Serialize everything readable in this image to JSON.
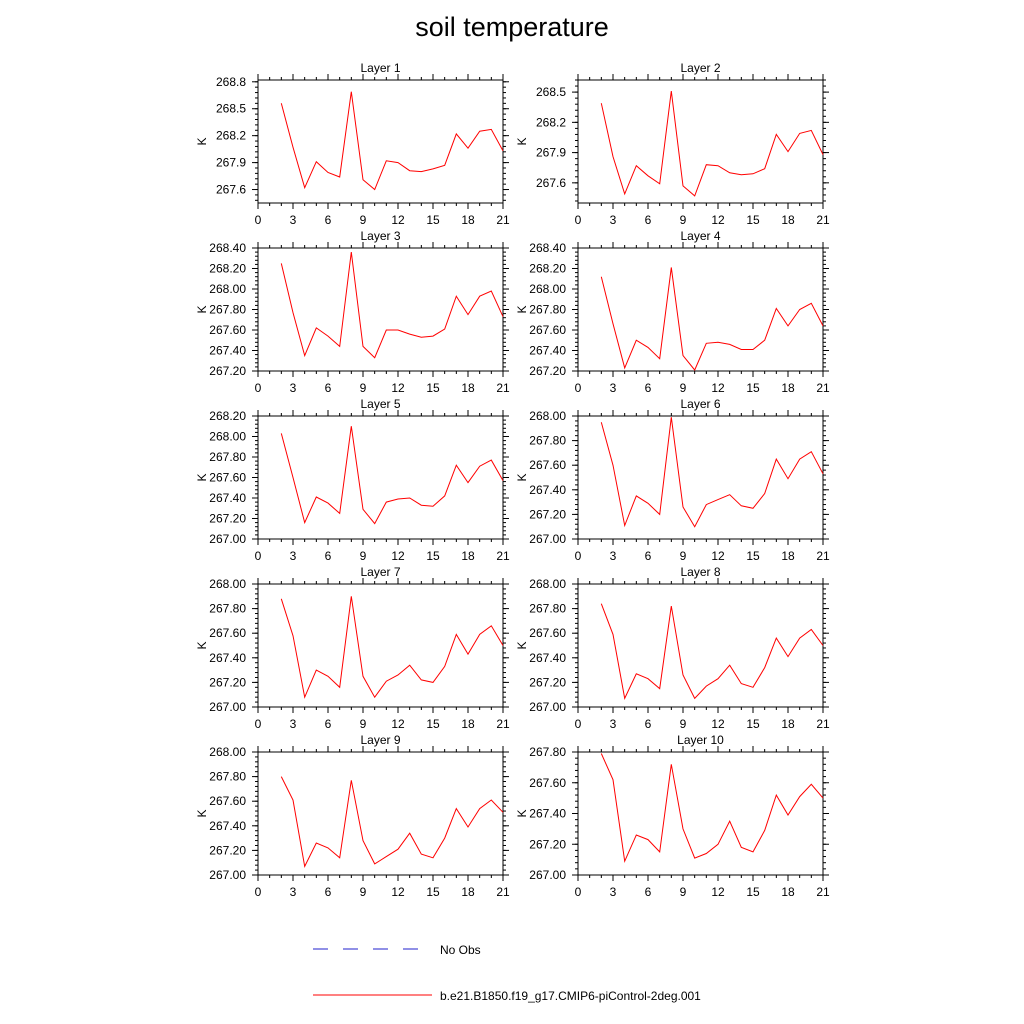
{
  "title": "soil temperature",
  "legend": [
    {
      "label": "No Obs",
      "color": "#2222cc",
      "style": "dashed"
    },
    {
      "label": "b.e21.B1850.f19_g17.CMIP6-piControl-2deg.001",
      "color": "#ff0000",
      "style": "solid"
    }
  ],
  "chart_data": [
    {
      "type": "line",
      "title": "Layer 1",
      "ylabel": "K",
      "xlim": [
        0,
        21
      ],
      "xticks": [
        0,
        3,
        6,
        9,
        12,
        15,
        18,
        21
      ],
      "ylim": [
        267.45,
        268.82
      ],
      "yticks": [
        267.6,
        267.9,
        268.2,
        268.5,
        268.8
      ],
      "ytick_labels": [
        "267.6",
        "267.9",
        "268.2",
        "268.5",
        "268.8"
      ],
      "x": [
        2,
        3,
        4,
        5,
        6,
        7,
        8,
        9,
        10,
        11,
        12,
        13,
        14,
        15,
        16,
        17,
        18,
        19,
        20,
        21
      ],
      "series": [
        {
          "values": [
            268.56,
            268.07,
            267.62,
            267.91,
            267.79,
            267.74,
            268.69,
            267.71,
            267.6,
            267.92,
            267.9,
            267.81,
            267.8,
            267.83,
            267.87,
            268.22,
            268.06,
            268.25,
            268.27,
            268.03
          ]
        }
      ]
    },
    {
      "type": "line",
      "title": "Layer 2",
      "ylabel": "K",
      "xlim": [
        0,
        21
      ],
      "xticks": [
        0,
        3,
        6,
        9,
        12,
        15,
        18,
        21
      ],
      "ylim": [
        267.4,
        268.62
      ],
      "yticks": [
        267.6,
        267.9,
        268.2,
        268.5
      ],
      "ytick_labels": [
        "267.6",
        "267.9",
        "268.2",
        "268.5"
      ],
      "x": [
        2,
        3,
        4,
        5,
        6,
        7,
        8,
        9,
        10,
        11,
        12,
        13,
        14,
        15,
        16,
        17,
        18,
        19,
        20,
        21
      ],
      "series": [
        {
          "values": [
            268.39,
            267.86,
            267.49,
            267.77,
            267.67,
            267.59,
            268.51,
            267.57,
            267.47,
            267.78,
            267.77,
            267.7,
            267.68,
            267.69,
            267.74,
            268.08,
            267.91,
            268.09,
            268.12,
            267.88
          ]
        }
      ]
    },
    {
      "type": "line",
      "title": "Layer 3",
      "ylabel": "K",
      "xlim": [
        0,
        21
      ],
      "xticks": [
        0,
        3,
        6,
        9,
        12,
        15,
        18,
        21
      ],
      "ylim": [
        267.2,
        268.4
      ],
      "yticks": [
        267.2,
        267.4,
        267.6,
        267.8,
        268.0,
        268.2,
        268.4
      ],
      "ytick_labels": [
        "267.20",
        "267.40",
        "267.60",
        "267.80",
        "268.00",
        "268.20",
        "268.40"
      ],
      "x": [
        2,
        3,
        4,
        5,
        6,
        7,
        8,
        9,
        10,
        11,
        12,
        13,
        14,
        15,
        16,
        17,
        18,
        19,
        20,
        21
      ],
      "series": [
        {
          "values": [
            268.25,
            267.77,
            267.35,
            267.62,
            267.54,
            267.44,
            268.36,
            267.44,
            267.33,
            267.6,
            267.6,
            267.56,
            267.53,
            267.54,
            267.61,
            267.93,
            267.75,
            267.93,
            267.98,
            267.73
          ]
        }
      ]
    },
    {
      "type": "line",
      "title": "Layer 4",
      "ylabel": "K",
      "xlim": [
        0,
        21
      ],
      "xticks": [
        0,
        3,
        6,
        9,
        12,
        15,
        18,
        21
      ],
      "ylim": [
        267.2,
        268.4
      ],
      "yticks": [
        267.2,
        267.4,
        267.6,
        267.8,
        268.0,
        268.2,
        268.4
      ],
      "ytick_labels": [
        "267.20",
        "267.40",
        "267.60",
        "267.80",
        "268.00",
        "268.20",
        "268.40"
      ],
      "x": [
        2,
        3,
        4,
        5,
        6,
        7,
        8,
        9,
        10,
        11,
        12,
        13,
        14,
        15,
        16,
        17,
        18,
        19,
        20,
        21
      ],
      "series": [
        {
          "values": [
            268.12,
            267.66,
            267.23,
            267.5,
            267.43,
            267.32,
            268.21,
            267.35,
            267.21,
            267.47,
            267.48,
            267.46,
            267.41,
            267.41,
            267.5,
            267.81,
            267.64,
            267.8,
            267.86,
            267.64
          ]
        }
      ]
    },
    {
      "type": "line",
      "title": "Layer 5",
      "ylabel": "K",
      "xlim": [
        0,
        21
      ],
      "xticks": [
        0,
        3,
        6,
        9,
        12,
        15,
        18,
        21
      ],
      "ylim": [
        267.0,
        268.2
      ],
      "yticks": [
        267.0,
        267.2,
        267.4,
        267.6,
        267.8,
        268.0,
        268.2
      ],
      "ytick_labels": [
        "267.00",
        "267.20",
        "267.40",
        "267.60",
        "267.80",
        "268.00",
        "268.20"
      ],
      "x": [
        2,
        3,
        4,
        5,
        6,
        7,
        8,
        9,
        10,
        11,
        12,
        13,
        14,
        15,
        16,
        17,
        18,
        19,
        20,
        21
      ],
      "series": [
        {
          "values": [
            268.03,
            267.6,
            267.16,
            267.41,
            267.35,
            267.25,
            268.1,
            267.29,
            267.15,
            267.36,
            267.39,
            267.4,
            267.33,
            267.32,
            267.42,
            267.72,
            267.55,
            267.71,
            267.77,
            267.57
          ]
        }
      ]
    },
    {
      "type": "line",
      "title": "Layer 6",
      "ylabel": "K",
      "xlim": [
        0,
        21
      ],
      "xticks": [
        0,
        3,
        6,
        9,
        12,
        15,
        18,
        21
      ],
      "ylim": [
        267.0,
        268.0
      ],
      "yticks": [
        267.0,
        267.2,
        267.4,
        267.6,
        267.8,
        268.0
      ],
      "ytick_labels": [
        "267.00",
        "267.20",
        "267.40",
        "267.60",
        "267.80",
        "268.00"
      ],
      "x": [
        2,
        3,
        4,
        5,
        6,
        7,
        8,
        9,
        10,
        11,
        12,
        13,
        14,
        15,
        16,
        17,
        18,
        19,
        20,
        21
      ],
      "series": [
        {
          "values": [
            267.95,
            267.6,
            267.11,
            267.35,
            267.29,
            267.2,
            267.99,
            267.26,
            267.1,
            267.28,
            267.32,
            267.36,
            267.27,
            267.25,
            267.37,
            267.65,
            267.49,
            267.65,
            267.71,
            267.53
          ]
        }
      ]
    },
    {
      "type": "line",
      "title": "Layer 7",
      "ylabel": "K",
      "xlim": [
        0,
        21
      ],
      "xticks": [
        0,
        3,
        6,
        9,
        12,
        15,
        18,
        21
      ],
      "ylim": [
        267.0,
        268.0
      ],
      "yticks": [
        267.0,
        267.2,
        267.4,
        267.6,
        267.8,
        268.0
      ],
      "ytick_labels": [
        "267.00",
        "267.20",
        "267.40",
        "267.60",
        "267.80",
        "268.00"
      ],
      "x": [
        2,
        3,
        4,
        5,
        6,
        7,
        8,
        9,
        10,
        11,
        12,
        13,
        14,
        15,
        16,
        17,
        18,
        19,
        20,
        21
      ],
      "series": [
        {
          "values": [
            267.88,
            267.58,
            267.08,
            267.3,
            267.25,
            267.16,
            267.9,
            267.25,
            267.08,
            267.21,
            267.26,
            267.34,
            267.22,
            267.2,
            267.33,
            267.59,
            267.43,
            267.59,
            267.66,
            267.5
          ]
        }
      ]
    },
    {
      "type": "line",
      "title": "Layer 8",
      "ylabel": "K",
      "xlim": [
        0,
        21
      ],
      "xticks": [
        0,
        3,
        6,
        9,
        12,
        15,
        18,
        21
      ],
      "ylim": [
        267.0,
        268.0
      ],
      "yticks": [
        267.0,
        267.2,
        267.4,
        267.6,
        267.8,
        268.0
      ],
      "ytick_labels": [
        "267.00",
        "267.20",
        "267.40",
        "267.60",
        "267.80",
        "268.00"
      ],
      "x": [
        2,
        3,
        4,
        5,
        6,
        7,
        8,
        9,
        10,
        11,
        12,
        13,
        14,
        15,
        16,
        17,
        18,
        19,
        20,
        21
      ],
      "series": [
        {
          "values": [
            267.84,
            267.59,
            267.07,
            267.27,
            267.23,
            267.15,
            267.82,
            267.26,
            267.07,
            267.17,
            267.23,
            267.34,
            267.19,
            267.16,
            267.32,
            267.56,
            267.41,
            267.56,
            267.63,
            267.5
          ]
        }
      ]
    },
    {
      "type": "line",
      "title": "Layer 9",
      "ylabel": "K",
      "xlim": [
        0,
        21
      ],
      "xticks": [
        0,
        3,
        6,
        9,
        12,
        15,
        18,
        21
      ],
      "ylim": [
        267.0,
        268.0
      ],
      "yticks": [
        267.0,
        267.2,
        267.4,
        267.6,
        267.8,
        268.0
      ],
      "ytick_labels": [
        "267.00",
        "267.20",
        "267.40",
        "267.60",
        "267.80",
        "268.00"
      ],
      "x": [
        2,
        3,
        4,
        5,
        6,
        7,
        8,
        9,
        10,
        11,
        12,
        13,
        14,
        15,
        16,
        17,
        18,
        19,
        20,
        21
      ],
      "series": [
        {
          "values": [
            267.8,
            267.61,
            267.07,
            267.26,
            267.22,
            267.14,
            267.77,
            267.28,
            267.09,
            267.15,
            267.21,
            267.34,
            267.17,
            267.14,
            267.3,
            267.54,
            267.39,
            267.54,
            267.61,
            267.51
          ]
        }
      ]
    },
    {
      "type": "line",
      "title": "Layer 10",
      "ylabel": "K",
      "xlim": [
        0,
        21
      ],
      "xticks": [
        0,
        3,
        6,
        9,
        12,
        15,
        18,
        21
      ],
      "ylim": [
        267.0,
        267.8
      ],
      "yticks": [
        267.0,
        267.2,
        267.4,
        267.6,
        267.8
      ],
      "ytick_labels": [
        "267.00",
        "267.20",
        "267.40",
        "267.60",
        "267.80"
      ],
      "x": [
        2,
        3,
        4,
        5,
        6,
        7,
        8,
        9,
        10,
        11,
        12,
        13,
        14,
        15,
        16,
        17,
        18,
        19,
        20,
        21
      ],
      "series": [
        {
          "values": [
            267.79,
            267.62,
            267.09,
            267.26,
            267.23,
            267.15,
            267.72,
            267.3,
            267.11,
            267.14,
            267.2,
            267.35,
            267.18,
            267.15,
            267.29,
            267.52,
            267.39,
            267.51,
            267.59,
            267.5
          ]
        }
      ]
    }
  ]
}
